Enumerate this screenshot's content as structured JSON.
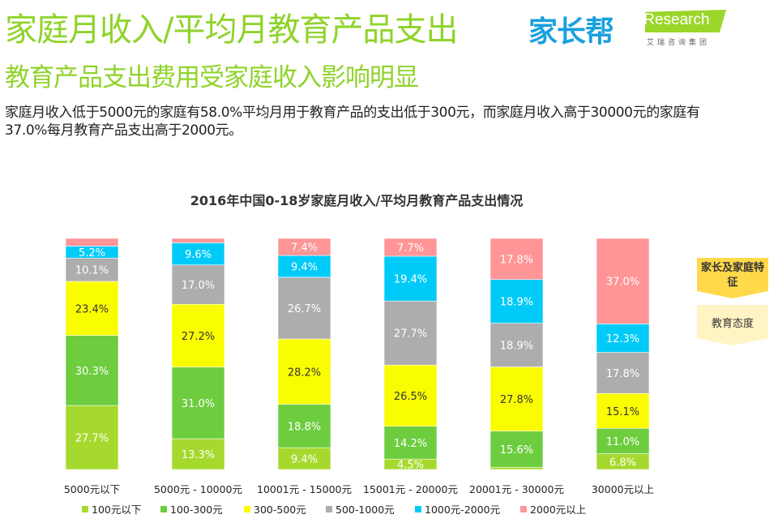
{
  "header": {
    "title": "家庭月收入/平均月教育产品支出",
    "subtitle": "教育产品支出费用受家庭收入影响明显",
    "description": "家庭月收入低于5000元的家庭有58.0%平均月用于教育产品的支出低于300元，而家庭月收入高于30000元的家庭有37.0%每月教育产品支出高于2000元。"
  },
  "logos": {
    "brand": "家长帮",
    "iresearch": "iResearch",
    "iresearch_sub": "艾瑞咨询集团"
  },
  "side_tags": [
    "家长及家庭特征",
    "教育态度"
  ],
  "chart_data": {
    "type": "bar",
    "stacked": true,
    "title": "2016年中国0-18岁家庭月收入/平均月教育产品支出情况",
    "categories": [
      "5000元以下",
      "5000元 - 10000元",
      "10001元 - 15000元",
      "15001元 - 20000元",
      "20001元 - 30000元",
      "30000元以上"
    ],
    "ylim": [
      0,
      100
    ],
    "legend_position": "bottom",
    "grid": false,
    "series": [
      {
        "name": "100元以下",
        "color": "#a6d92e",
        "values": [
          27.7,
          13.3,
          9.4,
          4.5,
          1.0,
          6.8
        ]
      },
      {
        "name": "100-300元",
        "color": "#6dcd3f",
        "values": [
          30.3,
          31.0,
          18.8,
          14.2,
          15.6,
          11.0
        ]
      },
      {
        "name": "300-500元",
        "color": "#fafd00",
        "values": [
          23.4,
          27.2,
          28.2,
          26.5,
          27.8,
          15.1
        ]
      },
      {
        "name": "500-1000元",
        "color": "#adadad",
        "values": [
          10.1,
          17.0,
          26.7,
          27.7,
          18.9,
          17.8
        ]
      },
      {
        "name": "1000元-2000元",
        "color": "#00cbf8",
        "values": [
          5.2,
          9.6,
          9.4,
          19.4,
          18.9,
          12.3
        ]
      },
      {
        "name": "2000元以上",
        "color": "#ff9596",
        "values": [
          3.3,
          1.9,
          7.4,
          7.7,
          17.8,
          37.0
        ]
      }
    ],
    "labels_shown_min": 4
  }
}
